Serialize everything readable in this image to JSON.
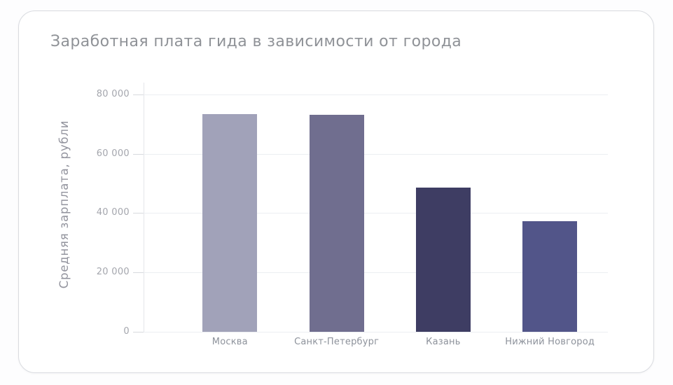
{
  "card": {
    "background": "#ffffff",
    "border_color": "#d9dbe0"
  },
  "chart_data": {
    "type": "bar",
    "title": "Заработная плата гида в зависимости от города",
    "xlabel": "",
    "ylabel": "Средняя зарплата, рубли",
    "categories": [
      "Москва",
      "Санкт-Петербург",
      "Казань",
      "Нижний Новгород"
    ],
    "values": [
      73500,
      73200,
      48500,
      37200
    ],
    "bar_colors": [
      "#a1a2b9",
      "#706e8f",
      "#3e3d63",
      "#525589"
    ],
    "yticks": [
      0,
      20000,
      40000,
      60000,
      80000
    ],
    "ytick_labels": [
      "0",
      "20 000",
      "40 000",
      "60 000",
      "80 000"
    ],
    "ylim": [
      0,
      84000
    ],
    "grid": "horizontal-only",
    "legend": "none",
    "title_color": "#8f9297",
    "axis_text_color": "#a4a6ad",
    "gridline_color": "#eceef1"
  }
}
